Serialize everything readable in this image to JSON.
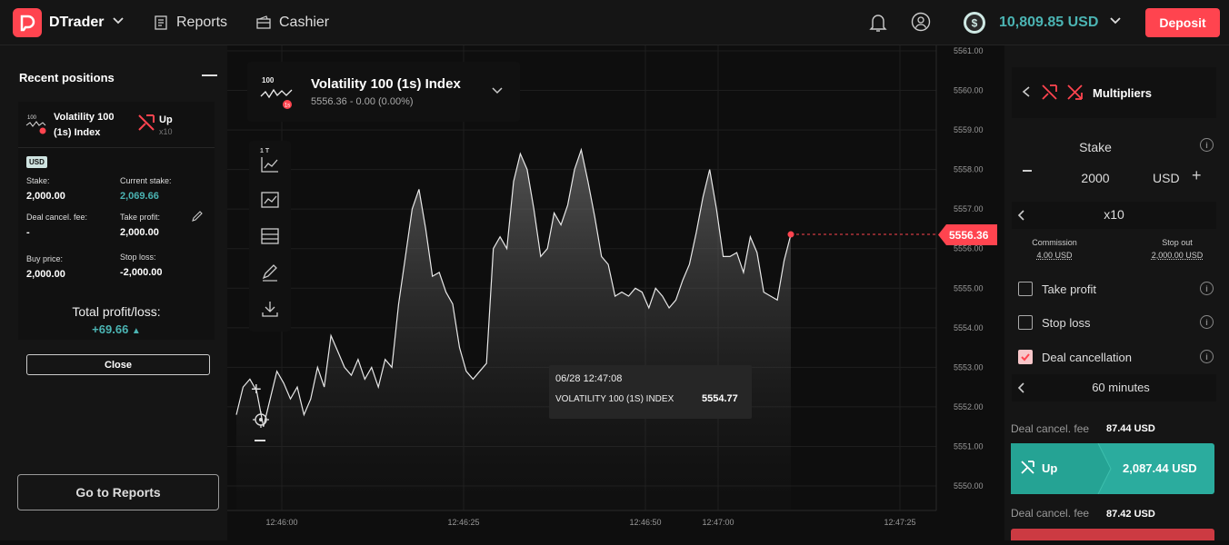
{
  "header": {
    "brand": "DTrader",
    "reports_label": "Reports",
    "cashier_label": "Cashier",
    "balance": "10,809.85 USD",
    "deposit_label": "Deposit"
  },
  "positions": {
    "title": "Recent positions",
    "symbol_line1": "Volatility 100",
    "symbol_line2": "(1s) Index",
    "direction": "Up",
    "multiplier": "x10",
    "currency": "USD",
    "stake_label": "Stake:",
    "stake_value": "2,000.00",
    "current_stake_label": "Current stake:",
    "current_stake_value": "2,069.66",
    "deal_cancel_label": "Deal cancel. fee:",
    "deal_cancel_value": "-",
    "take_profit_label": "Take profit:",
    "take_profit_value": "2,000.00",
    "buy_price_label": "Buy price:",
    "buy_price_value": "2,000.00",
    "stop_loss_label": "Stop loss:",
    "stop_loss_value": "-2,000.00",
    "total_label": "Total profit/loss:",
    "total_value": "+69.66",
    "close_label": "Close",
    "go_reports_label": "Go to Reports"
  },
  "market": {
    "name": "Volatility 100 (1s) Index",
    "quote": "5556.36 - 0.00 (0.00%)",
    "icon_text": "100",
    "badge_text": "1s",
    "interval": "1 T",
    "current_price": "5556.36"
  },
  "tooltip": {
    "time": "06/28 12:47:08",
    "symbol": "VOLATILITY 100 (1S) INDEX",
    "value": "5554.77"
  },
  "chart_data": {
    "type": "area",
    "y_ticks": [
      "5561.00",
      "5560.00",
      "5559.00",
      "5558.00",
      "5557.00",
      "5556.00",
      "5555.00",
      "5554.00",
      "5553.00",
      "5552.00",
      "5551.00",
      "5550.00"
    ],
    "x_ticks": [
      "12:46:00",
      "12:46:25",
      "12:46:50",
      "12:47:00",
      "12:47:25"
    ],
    "ylim": [
      5549.5,
      5561.5
    ],
    "values": [
      5551.8,
      5552.5,
      5552.7,
      5552.4,
      5551.5,
      5552.2,
      5552.9,
      5552.6,
      5552.2,
      5552.5,
      5551.8,
      5552.2,
      5553.0,
      5552.5,
      5553.8,
      5553.4,
      5553.0,
      5552.8,
      5553.2,
      5552.7,
      5553.0,
      5552.5,
      5553.2,
      5553.0,
      5554.6,
      5555.8,
      5557.0,
      5557.5,
      5556.5,
      5555.3,
      5555.4,
      5554.9,
      5554.6,
      5553.5,
      5552.9,
      5552.7,
      5552.9,
      5553.1,
      5556.0,
      5556.3,
      5556.0,
      5557.7,
      5558.4,
      5558.0,
      5557.0,
      5555.8,
      5556.0,
      5556.9,
      5556.6,
      5557.1,
      5558.0,
      5558.5,
      5557.7,
      5556.8,
      5555.8,
      5555.6,
      5554.8,
      5554.9,
      5554.8,
      5555.0,
      5554.9,
      5554.5,
      5555.0,
      5554.8,
      5554.5,
      5554.7,
      5555.2,
      5555.6,
      5556.4,
      5557.3,
      5558.0,
      5557.0,
      5555.8,
      5555.8,
      5555.9,
      5555.4,
      5556.3,
      5555.9,
      5554.9,
      5554.8,
      5554.7,
      5555.7,
      5556.36
    ]
  },
  "trade": {
    "title": "Multipliers",
    "stake_label": "Stake",
    "stake_value": "2000",
    "currency": "USD",
    "multiplier": "x10",
    "commission_label": "Commission",
    "commission_value": "4.00 USD",
    "stop_out_label": "Stop out",
    "stop_out_value": "2,000.00 USD",
    "take_profit_label": "Take profit",
    "stop_loss_label": "Stop loss",
    "deal_cancellation_label": "Deal cancellation",
    "duration": "60 minutes",
    "fee_label_1": "Deal cancel. fee",
    "fee_value_1": "87.44 USD",
    "up_label": "Up",
    "up_value": "2,087.44 USD",
    "fee_label_2": "Deal cancel. fee",
    "fee_value_2": "87.42 USD",
    "colors": {
      "up": "#2bac9e",
      "down": "#ff444f",
      "accent": "#4bb4b3"
    }
  }
}
